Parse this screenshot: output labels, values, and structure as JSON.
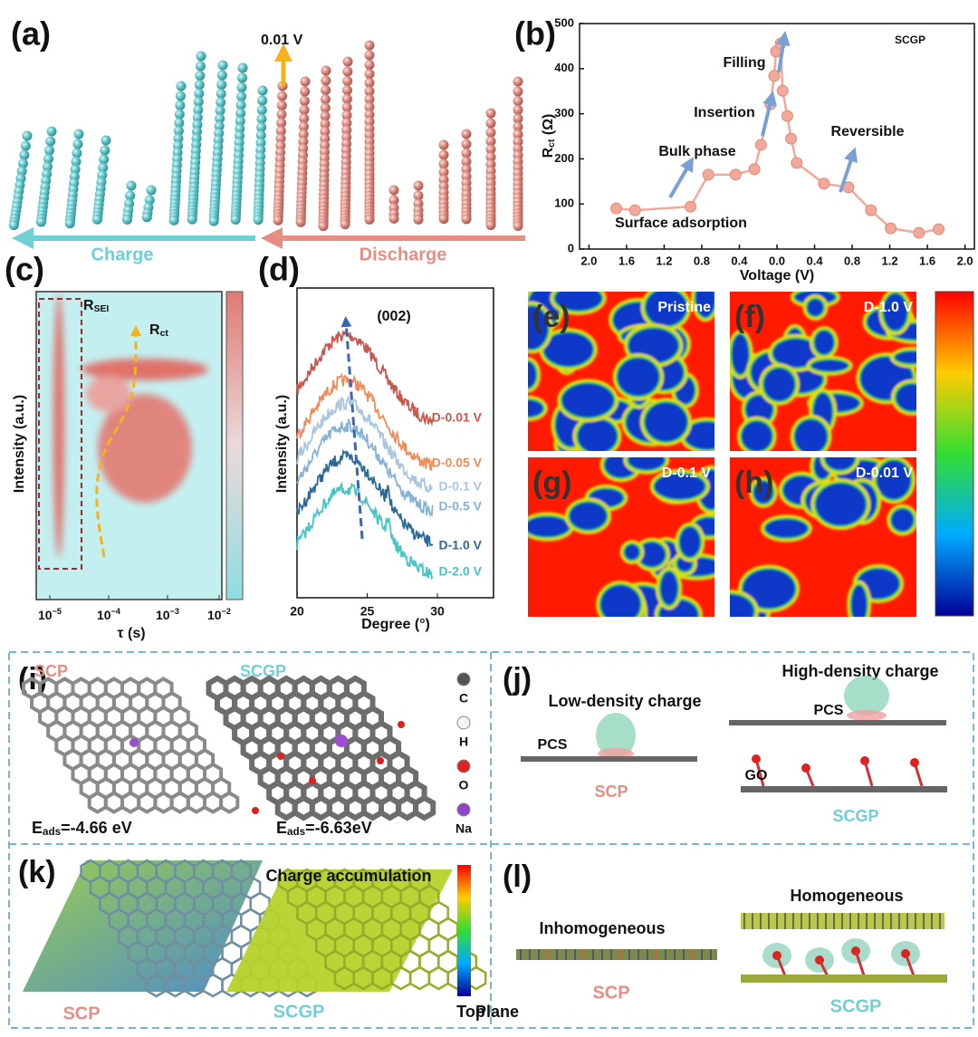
{
  "chart_data": {
    "type": "line",
    "panel_label": "(b)",
    "xlabel": "Voltage (V)",
    "ylabel": [
      "R",
      "ct",
      " (Ω)"
    ],
    "x": [
      -1.71,
      -1.51,
      -0.92,
      -0.73,
      -0.44,
      -0.24,
      -0.17,
      -0.07,
      -0.03,
      -0.01,
      0.04,
      0.06,
      0.11,
      0.15,
      0.21,
      0.5,
      0.76,
      1.0,
      1.21,
      1.51,
      1.72
    ],
    "values": [
      90,
      86,
      94,
      165,
      165,
      177,
      231,
      321,
      384,
      438,
      456,
      351,
      295,
      245,
      191,
      145,
      137,
      86,
      46,
      36,
      44
    ],
    "color": "#f2a999",
    "xlim": [
      -2.1,
      2.1
    ],
    "ylim": [
      0,
      500
    ],
    "xticks": [
      {
        "value": -2.0,
        "label": "2.0"
      },
      {
        "value": -1.6,
        "label": "1.6"
      },
      {
        "value": -1.2,
        "label": "1.2"
      },
      {
        "value": -0.8,
        "label": "0.8"
      },
      {
        "value": -0.4,
        "label": "0.4"
      },
      {
        "value": 0,
        "label": "0.0"
      },
      {
        "value": 0.4,
        "label": "0.4"
      },
      {
        "value": 0.8,
        "label": "0.8"
      },
      {
        "value": 1.2,
        "label": "1.2"
      },
      {
        "value": 1.6,
        "label": "1.6"
      },
      {
        "value": 2.0,
        "label": "2.0"
      }
    ],
    "yticks": [
      0,
      100,
      200,
      300,
      400,
      500
    ],
    "annotations": [
      "SCGP",
      "Filling",
      "Insertion",
      "Bulk phase",
      "Reversible",
      "Surface adsorption"
    ]
  },
  "panels": {
    "a": {
      "label": "(a)",
      "voltage": "0.01 V",
      "charge": "Charge",
      "discharge": "Discharge"
    },
    "c": {
      "label": "(c)",
      "rsei": [
        "R",
        "SEI"
      ],
      "rct": [
        "R",
        "ct"
      ],
      "ylabel": "Intensity (a.u.)",
      "xlabel": "τ (s)",
      "xticks": [
        [
          "10",
          "−5"
        ],
        [
          "10",
          "−4"
        ],
        [
          "10",
          "−3"
        ],
        [
          "10",
          "−2"
        ]
      ]
    },
    "d": {
      "label": "(d)",
      "peak": "(002)",
      "ylabel": "Intensity (a.u.)",
      "xlabel": "Degree (°)",
      "xticks": [
        20,
        25,
        30
      ],
      "xlim": [
        20,
        34
      ],
      "series": [
        {
          "name": "D-0.01 V",
          "color": "#c9574d"
        },
        {
          "name": "D-0.05 V",
          "color": "#f08c5a"
        },
        {
          "name": "D-0.1 V",
          "color": "#a9c6e0"
        },
        {
          "name": "D-0.5 V",
          "color": "#86b1d6"
        },
        {
          "name": "D-1.0 V",
          "color": "#2c6a95"
        },
        {
          "name": "D-2.0 V",
          "color": "#46c4c6"
        }
      ]
    },
    "maps": [
      {
        "label": "(e)",
        "title": "Pristine"
      },
      {
        "label": "(f)",
        "title": "D-1.0 V"
      },
      {
        "label": "(g)",
        "title": "D-0.1 V"
      },
      {
        "label": "(h)",
        "title": "D-0.01 V"
      }
    ],
    "i": {
      "label": "(i)",
      "scp": "SCP",
      "scgp": "SCGP",
      "legend": [
        "C",
        "H",
        "O",
        "Na"
      ],
      "eads1": [
        "E",
        "ads",
        "=-4.66 eV"
      ],
      "eads2": [
        "E",
        "ads",
        "=-6.63eV"
      ]
    },
    "j": {
      "label": "(j)",
      "low": "Low-density charge",
      "high": "High-density charge",
      "pcs1": "PCS",
      "pcs2": "PCS",
      "go": "GO",
      "scp": "SCP",
      "scgp": "SCGP"
    },
    "k": {
      "label": "(k)",
      "charge": "Charge accumulation",
      "scp": "SCP",
      "scgp": "SCGP",
      "top": "Top"
    },
    "l": {
      "label": "(l)",
      "inhom": "Inhomogeneous",
      "hom": "Homogeneous",
      "plane": "Plane",
      "scp": "SCP",
      "scgp": "SCGP"
    }
  }
}
